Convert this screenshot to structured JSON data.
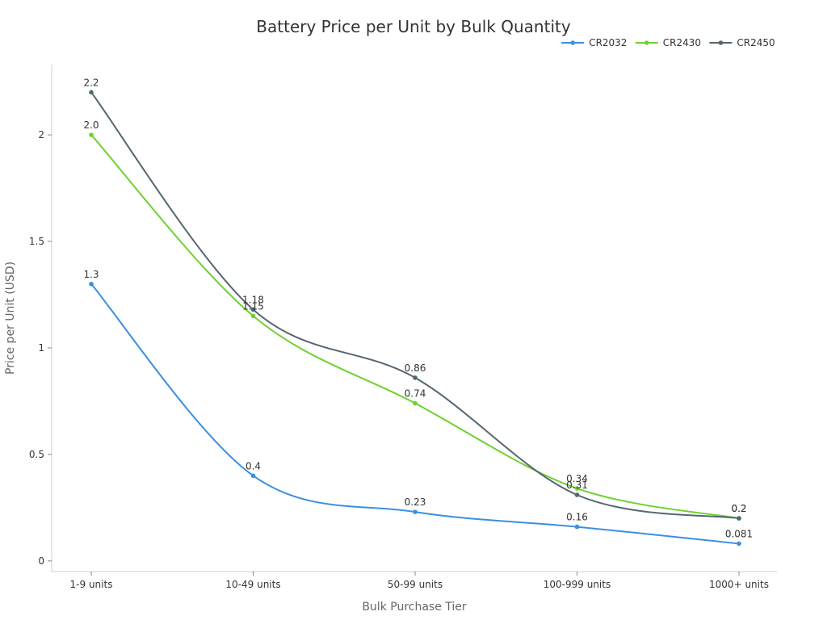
{
  "chart_data": {
    "type": "line",
    "title": "Battery Price per Unit by Bulk Quantity",
    "xlabel": "Bulk Purchase Tier",
    "ylabel": "Price per Unit (USD)",
    "categories": [
      "1-9 units",
      "10-49 units",
      "50-99 units",
      "100-999 units",
      "1000+ units"
    ],
    "ylim": [
      -0.05,
      2.33
    ],
    "yticks": [
      0,
      0.5,
      1,
      1.5,
      2
    ],
    "ytick_labels": [
      "0",
      "0.5",
      "1",
      "1.5",
      "2"
    ],
    "grid": false,
    "legend_position": "top-right",
    "series": [
      {
        "name": "CR2032",
        "color": "#3b8fe0",
        "values": [
          1.3,
          0.4,
          0.23,
          0.16,
          0.081
        ],
        "labels": [
          "1.3",
          "0.4",
          "0.23",
          "0.16",
          "0.081"
        ]
      },
      {
        "name": "CR2430",
        "color": "#6fd12e",
        "values": [
          2.0,
          1.15,
          0.74,
          0.34,
          0.2
        ],
        "labels": [
          "2.0",
          "1.15",
          "0.74",
          "0.34",
          "0.2"
        ]
      },
      {
        "name": "CR2450",
        "color": "#546670",
        "values": [
          2.2,
          1.18,
          0.86,
          0.31,
          0.2
        ],
        "labels": [
          "2.2",
          "1.18",
          "0.86",
          "0.31",
          "0.2"
        ]
      }
    ]
  }
}
